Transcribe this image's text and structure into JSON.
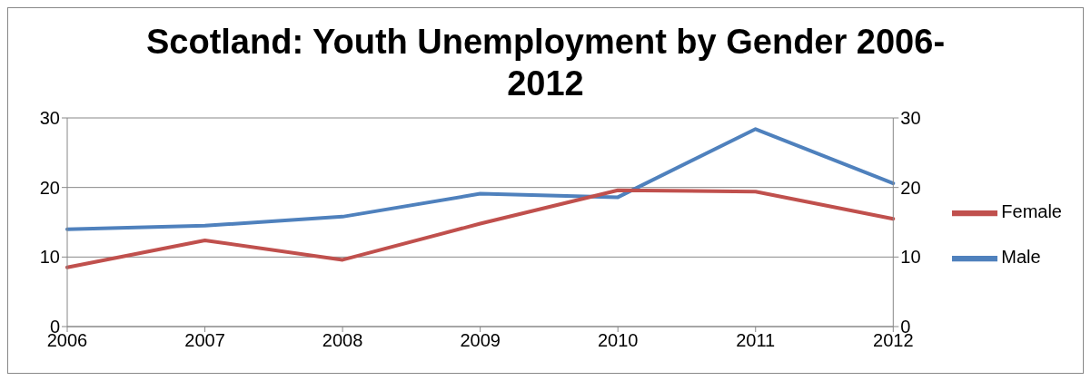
{
  "chart_data": {
    "type": "line",
    "title": "Scotland: Youth Unemployment by Gender 2006-2012",
    "categories": [
      "2006",
      "2007",
      "2008",
      "2009",
      "2010",
      "2011",
      "2012"
    ],
    "series": [
      {
        "name": "Male",
        "color": "#4f81bd",
        "values": [
          14.0,
          14.5,
          15.8,
          19.1,
          18.6,
          28.4,
          20.6
        ]
      },
      {
        "name": "Female",
        "color": "#c0504d",
        "values": [
          8.5,
          12.4,
          9.6,
          14.8,
          19.6,
          19.4,
          15.5
        ]
      }
    ],
    "ylim": [
      0,
      30
    ],
    "yticks": [
      0,
      10,
      20,
      30
    ],
    "y2lim": [
      0,
      30
    ],
    "y2ticks": [
      0,
      10,
      20,
      30
    ],
    "grid": "y",
    "legend": "right",
    "marker": "none",
    "line_style": "solid"
  }
}
